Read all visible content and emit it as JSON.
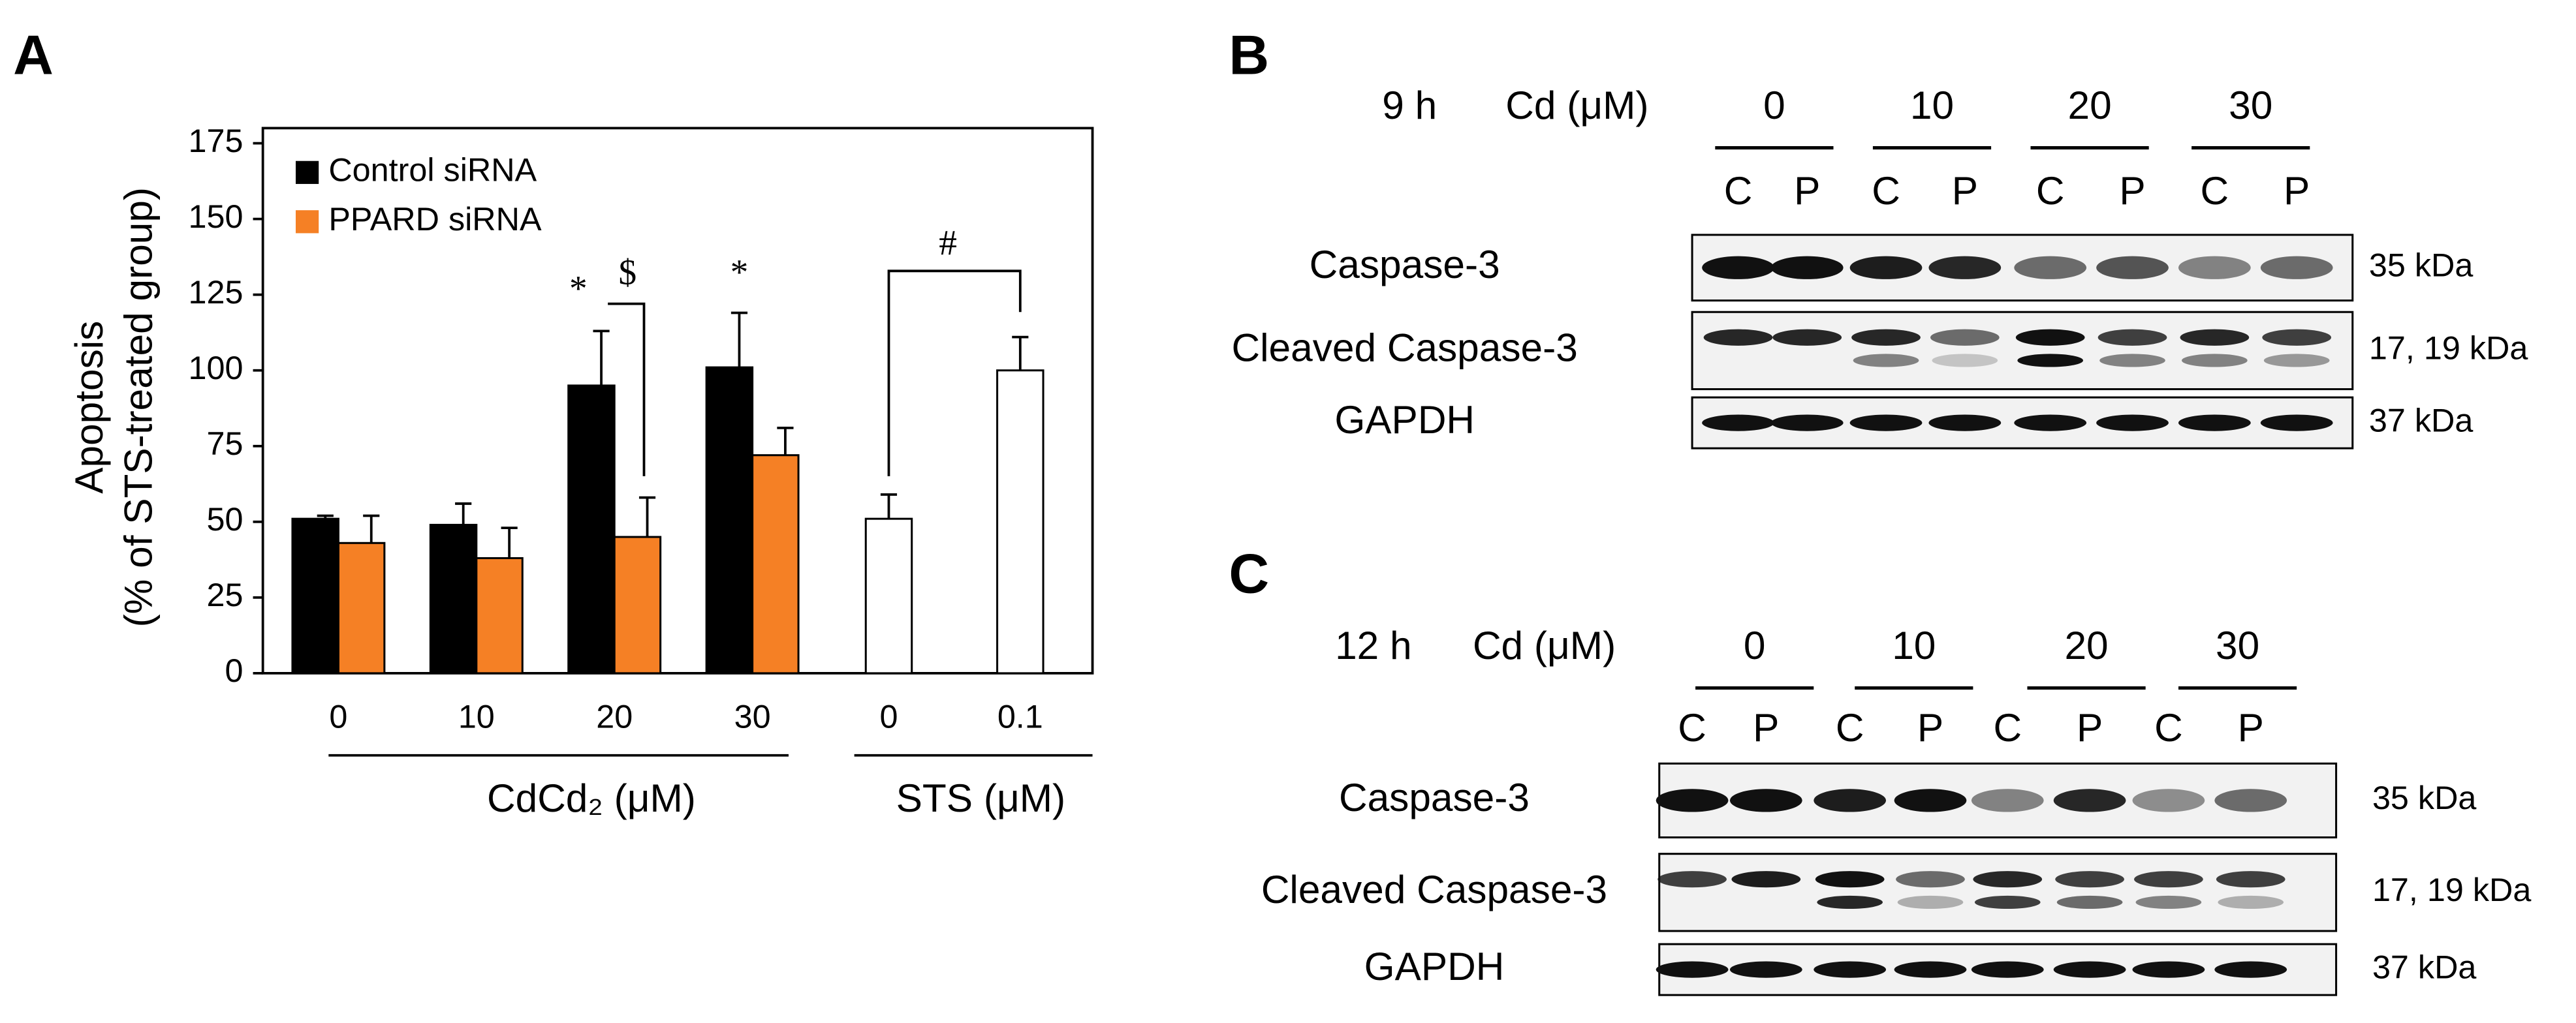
{
  "chart_data": {
    "type": "bar",
    "panel": "A",
    "y_label": [
      "Apoptosis",
      "(% of STS-treated group)"
    ],
    "categories": [
      "0",
      "10",
      "20",
      "30",
      "0",
      "0.1"
    ],
    "groups": [
      "CdCd₂ (μM)",
      "STS (μM)"
    ],
    "series": [
      {
        "name": "Control siRNA",
        "color": "#000000",
        "values": [
          51,
          49,
          95,
          101,
          null,
          null
        ],
        "errors": [
          1,
          7,
          18,
          18,
          null,
          null
        ]
      },
      {
        "name": "PPARD siRNA",
        "color": "#f58025",
        "values": [
          43,
          38,
          45,
          72,
          null,
          null
        ],
        "errors": [
          9,
          10,
          13,
          9,
          null,
          null
        ]
      },
      {
        "color": "#ffffff",
        "values": [
          null,
          null,
          null,
          null,
          51,
          100
        ],
        "errors": [
          null,
          null,
          null,
          null,
          8,
          11
        ]
      }
    ],
    "annotations": [
      "*",
      "$",
      "*",
      "#"
    ],
    "ylim": [
      0,
      180
    ],
    "yticks": [
      0,
      25,
      50,
      75,
      100,
      125,
      150,
      175
    ]
  },
  "blots": [
    {
      "panel": "B",
      "time": "9 h",
      "dose_label": "Cd (μM)",
      "doses": [
        "0",
        "10",
        "20",
        "30"
      ],
      "lanes": [
        "C",
        "P",
        "C",
        "P",
        "C",
        "P",
        "C",
        "P"
      ],
      "rows": [
        {
          "label": "Caspase-3",
          "kda": "35 kDa"
        },
        {
          "label": "Cleaved Caspase-3",
          "kda": "17, 19 kDa"
        },
        {
          "label": "GAPDH",
          "kda": "37 kDa"
        }
      ]
    },
    {
      "panel": "C",
      "time": "12 h",
      "dose_label": "Cd (μM)",
      "doses": [
        "0",
        "10",
        "20",
        "30"
      ],
      "lanes": [
        "C",
        "P",
        "C",
        "P",
        "C",
        "P",
        "C",
        "P"
      ],
      "rows": [
        {
          "label": "Caspase-3",
          "kda": "35 kDa"
        },
        {
          "label": "Cleaved Caspase-3",
          "kda": "17, 19 kDa"
        },
        {
          "label": "GAPDH",
          "kda": "37 kDa"
        }
      ]
    }
  ]
}
